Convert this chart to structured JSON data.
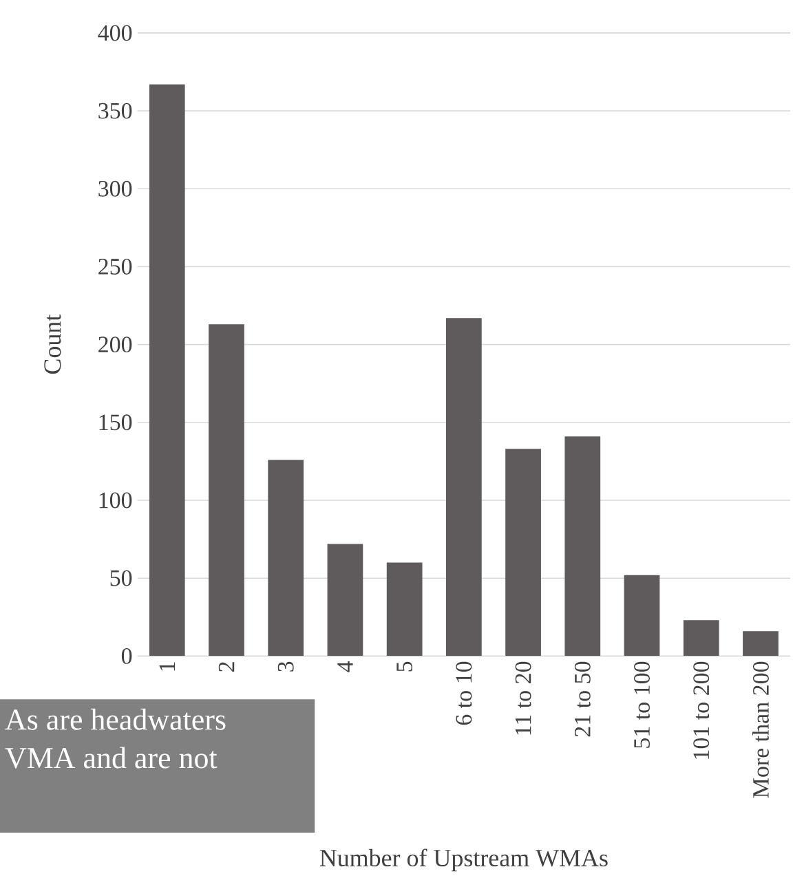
{
  "chart_data": {
    "type": "bar",
    "xlabel": "Number of Upstream WMAs",
    "ylabel": "Count",
    "categories": [
      "1",
      "2",
      "3",
      "4",
      "5",
      "6 to 10",
      "11 to 20",
      "21 to 50",
      "51 to 100",
      "101 to 200",
      "More than 200"
    ],
    "values": [
      367,
      213,
      126,
      72,
      60,
      217,
      133,
      141,
      52,
      23,
      16
    ],
    "color": "#5f5a5c",
    "ylim": [
      0,
      400
    ],
    "yticks": [
      0,
      50,
      100,
      150,
      200,
      250,
      300,
      350,
      400
    ],
    "grid": "y",
    "annotations": [
      "As are headwaters",
      "VMA and are not"
    ]
  }
}
